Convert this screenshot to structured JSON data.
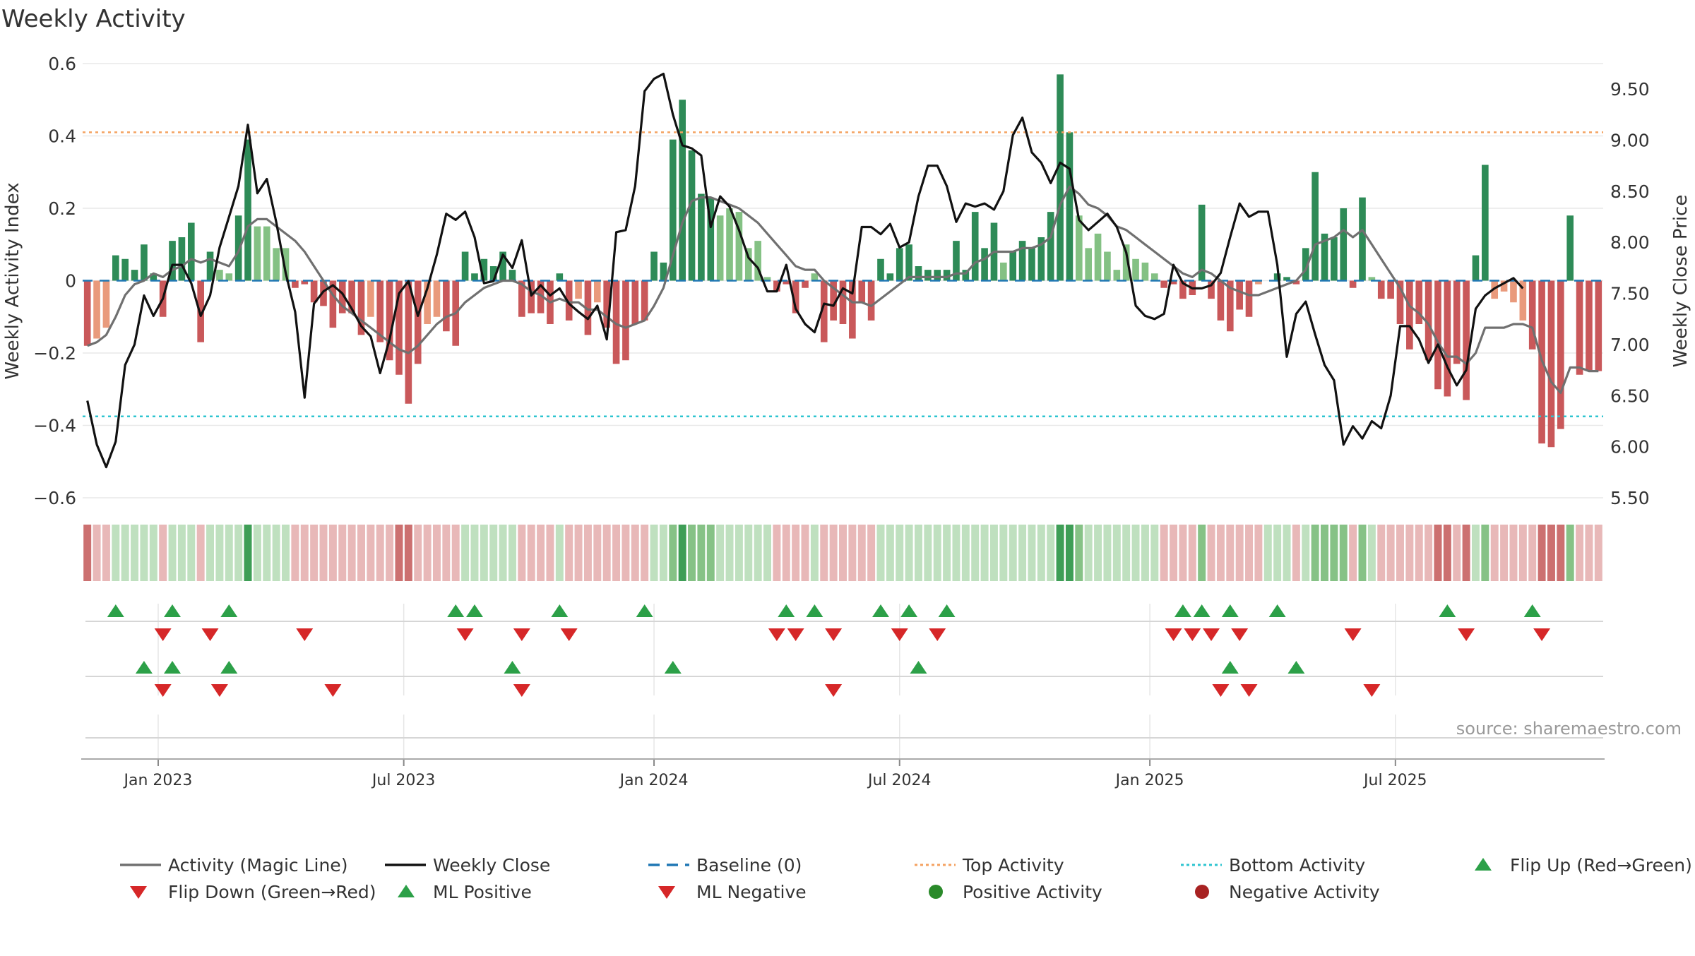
{
  "chart_data": {
    "type": "bar",
    "title": "Weekly Activity",
    "ylabel_left": "Weekly Activity Index",
    "ylabel_right": "Weekly Close Price",
    "source": "source: sharemaestro.com",
    "ylim_left": [
      -0.6,
      0.6
    ],
    "left_ticks": [
      {
        "v": 0.6,
        "label": "0.6"
      },
      {
        "v": 0.4,
        "label": "0.4"
      },
      {
        "v": 0.2,
        "label": "0.2"
      },
      {
        "v": 0,
        "label": "0"
      },
      {
        "v": -0.2,
        "label": "−0.2"
      },
      {
        "v": -0.4,
        "label": "−0.4"
      },
      {
        "v": -0.6,
        "label": "−0.6"
      }
    ],
    "right_range": [
      5.5,
      9.75
    ],
    "right_ticks": [
      {
        "v": 9.5,
        "label": "9.50"
      },
      {
        "v": 9.0,
        "label": "9.00"
      },
      {
        "v": 8.5,
        "label": "8.50"
      },
      {
        "v": 8.0,
        "label": "8.00"
      },
      {
        "v": 7.5,
        "label": "7.50"
      },
      {
        "v": 7.0,
        "label": "7.00"
      },
      {
        "v": 6.5,
        "label": "6.50"
      },
      {
        "v": 6.0,
        "label": "6.00"
      },
      {
        "v": 5.5,
        "label": "5.50"
      }
    ],
    "x_ticks": [
      {
        "week": 7.5,
        "label": "Jan 2023"
      },
      {
        "week": 33.5,
        "label": "Jul 2023"
      },
      {
        "week": 60,
        "label": "Jan 2024"
      },
      {
        "week": 86,
        "label": "Jul 2024"
      },
      {
        "week": 112.5,
        "label": "Jan 2025"
      },
      {
        "week": 138.5,
        "label": "Jul 2025"
      }
    ],
    "top_activity": 0.41,
    "bottom_activity": -0.375,
    "activity": [
      -0.18,
      -0.16,
      -0.13,
      0.07,
      0.06,
      0.03,
      0.1,
      0.02,
      -0.1,
      0.11,
      0.12,
      0.16,
      -0.17,
      0.08,
      0.03,
      0.02,
      0.18,
      0.39,
      0.15,
      0.15,
      0.09,
      0.09,
      -0.02,
      -0.01,
      -0.06,
      -0.07,
      -0.13,
      -0.09,
      -0.09,
      -0.15,
      -0.1,
      -0.17,
      -0.22,
      -0.26,
      -0.34,
      -0.23,
      -0.12,
      -0.1,
      -0.14,
      -0.18,
      0.08,
      0.02,
      0.06,
      0.04,
      0.08,
      0.03,
      -0.1,
      -0.09,
      -0.09,
      -0.12,
      0.02,
      -0.11,
      -0.05,
      -0.15,
      -0.06,
      -0.13,
      -0.23,
      -0.22,
      -0.12,
      -0.11,
      0.08,
      0.05,
      0.39,
      0.5,
      0.36,
      0.24,
      0.23,
      0.18,
      0.2,
      0.19,
      0.09,
      0.11,
      0.01,
      -0.03,
      -0.01,
      -0.09,
      -0.02,
      0.02,
      -0.17,
      -0.11,
      -0.12,
      -0.16,
      -0.06,
      -0.11,
      0.06,
      0.02,
      0.09,
      0.1,
      0.04,
      0.03,
      0.03,
      0.03,
      0.11,
      0.03,
      0.19,
      0.09,
      0.16,
      0.05,
      0.08,
      0.11,
      0.09,
      0.12,
      0.19,
      0.57,
      0.41,
      0.18,
      0.09,
      0.13,
      0.08,
      0.03,
      0.1,
      0.06,
      0.05,
      0.02,
      -0.02,
      -0.01,
      -0.05,
      -0.04,
      0.21,
      -0.05,
      -0.11,
      -0.14,
      -0.08,
      -0.1,
      -0.01,
      0.0,
      0.02,
      0.01,
      -0.01,
      0.09,
      0.3,
      0.13,
      0.12,
      0.2,
      -0.02,
      0.23,
      0.01,
      -0.05,
      -0.05,
      -0.12,
      -0.19,
      -0.12,
      -0.22,
      -0.3,
      -0.32,
      -0.23,
      -0.33,
      0.07,
      0.32,
      -0.05,
      -0.03,
      -0.06,
      -0.11,
      -0.19,
      -0.45,
      -0.46,
      -0.41,
      0.18,
      -0.26,
      -0.25,
      -0.25
    ],
    "magic_line": [
      -0.18,
      -0.17,
      -0.15,
      -0.1,
      -0.04,
      -0.01,
      0.0,
      0.02,
      0.01,
      0.03,
      0.04,
      0.06,
      0.05,
      0.06,
      0.05,
      0.04,
      0.08,
      0.15,
      0.17,
      0.17,
      0.15,
      0.13,
      0.11,
      0.08,
      0.04,
      0.0,
      -0.04,
      -0.07,
      -0.09,
      -0.11,
      -0.13,
      -0.15,
      -0.17,
      -0.19,
      -0.2,
      -0.18,
      -0.15,
      -0.12,
      -0.1,
      -0.09,
      -0.06,
      -0.04,
      -0.02,
      -0.01,
      0.0,
      0.0,
      -0.01,
      -0.03,
      -0.04,
      -0.06,
      -0.05,
      -0.06,
      -0.06,
      -0.08,
      -0.08,
      -0.1,
      -0.12,
      -0.13,
      -0.12,
      -0.11,
      -0.07,
      -0.02,
      0.07,
      0.16,
      0.22,
      0.23,
      0.23,
      0.22,
      0.21,
      0.2,
      0.18,
      0.16,
      0.13,
      0.1,
      0.07,
      0.04,
      0.03,
      0.03,
      0.0,
      -0.02,
      -0.04,
      -0.06,
      -0.06,
      -0.07,
      -0.05,
      -0.03,
      -0.01,
      0.01,
      0.01,
      0.01,
      0.01,
      0.01,
      0.02,
      0.02,
      0.05,
      0.06,
      0.08,
      0.08,
      0.08,
      0.09,
      0.09,
      0.1,
      0.12,
      0.21,
      0.26,
      0.24,
      0.21,
      0.2,
      0.18,
      0.15,
      0.14,
      0.12,
      0.1,
      0.08,
      0.06,
      0.04,
      0.02,
      0.01,
      0.03,
      0.02,
      0.0,
      -0.02,
      -0.03,
      -0.04,
      -0.04,
      -0.03,
      -0.02,
      -0.01,
      0.0,
      0.03,
      0.1,
      0.11,
      0.12,
      0.14,
      0.12,
      0.14,
      0.1,
      0.06,
      0.02,
      -0.02,
      -0.07,
      -0.09,
      -0.12,
      -0.17,
      -0.21,
      -0.21,
      -0.23,
      -0.2,
      -0.13,
      -0.13,
      -0.13,
      -0.12,
      -0.12,
      -0.13,
      -0.22,
      -0.28,
      -0.31,
      -0.24,
      -0.24,
      -0.25,
      -0.25
    ],
    "weekly_close": [
      6.45,
      6.02,
      5.8,
      6.05,
      6.8,
      7.0,
      7.48,
      7.28,
      7.45,
      7.78,
      7.78,
      7.6,
      7.28,
      7.48,
      7.95,
      8.25,
      8.55,
      9.15,
      8.48,
      8.62,
      8.2,
      7.7,
      7.32,
      6.48,
      7.4,
      7.52,
      7.58,
      7.5,
      7.35,
      7.18,
      7.08,
      6.72,
      7.05,
      7.5,
      7.62,
      7.28,
      7.55,
      7.88,
      8.28,
      8.22,
      8.3,
      8.05,
      7.6,
      7.62,
      7.88,
      7.75,
      8.02,
      7.48,
      7.58,
      7.48,
      7.55,
      7.4,
      7.32,
      7.25,
      7.38,
      7.05,
      8.1,
      8.12,
      8.55,
      9.48,
      9.6,
      9.65,
      9.25,
      8.95,
      8.92,
      8.85,
      8.15,
      8.45,
      8.35,
      8.12,
      7.85,
      7.75,
      7.52,
      7.52,
      7.78,
      7.35,
      7.2,
      7.12,
      7.4,
      7.38,
      7.55,
      7.5,
      8.15,
      8.15,
      8.08,
      8.18,
      7.95,
      8.0,
      8.45,
      8.75,
      8.75,
      8.55,
      8.2,
      8.38,
      8.35,
      8.38,
      8.32,
      8.5,
      9.05,
      9.22,
      8.88,
      8.78,
      8.58,
      8.78,
      8.72,
      8.22,
      8.12,
      8.2,
      8.28,
      8.15,
      7.9,
      7.38,
      7.28,
      7.25,
      7.3,
      7.78,
      7.6,
      7.55,
      7.55,
      7.58,
      7.7,
      8.05,
      8.38,
      8.25,
      8.3,
      8.3,
      7.78,
      6.88,
      7.3,
      7.42,
      7.1,
      6.8,
      6.65,
      6.02,
      6.2,
      6.08,
      6.25,
      6.18,
      6.5,
      7.18,
      7.18,
      7.05,
      6.82,
      7.0,
      6.78,
      6.6,
      6.75,
      7.35,
      7.48,
      7.55,
      7.6,
      7.65,
      7.55
    ],
    "heat_strip": [
      -2,
      -1,
      -1,
      1,
      1,
      1,
      1,
      1,
      -1,
      1,
      1,
      1,
      -1,
      1,
      1,
      1,
      1,
      3,
      1,
      1,
      1,
      1,
      -1,
      -1,
      -1,
      -1,
      -1,
      -1,
      -1,
      -1,
      -1,
      -1,
      -1,
      -2,
      -2,
      -1,
      -1,
      -1,
      -1,
      -1,
      1,
      1,
      1,
      1,
      1,
      1,
      -1,
      -1,
      -1,
      -1,
      1,
      -1,
      -1,
      -1,
      -1,
      -1,
      -1,
      -1,
      -1,
      -1,
      1,
      1,
      2,
      3,
      2,
      2,
      2,
      1,
      1,
      1,
      1,
      1,
      1,
      -1,
      -1,
      -1,
      -1,
      1,
      -1,
      -1,
      -1,
      -1,
      -1,
      -1,
      1,
      1,
      1,
      1,
      1,
      1,
      1,
      1,
      1,
      1,
      1,
      1,
      1,
      1,
      1,
      1,
      1,
      1,
      1,
      3,
      3,
      2,
      1,
      1,
      1,
      1,
      1,
      1,
      1,
      1,
      -1,
      -1,
      -1,
      -1,
      2,
      -1,
      -1,
      -1,
      -1,
      -1,
      -1,
      1,
      1,
      1,
      -1,
      1,
      2,
      2,
      2,
      2,
      -1,
      2,
      1,
      -1,
      -1,
      -1,
      -1,
      -1,
      -1,
      -2,
      -2,
      -1,
      -2,
      1,
      2,
      -1,
      -1,
      -1,
      -1,
      -1,
      -2,
      -2,
      -2,
      2,
      -1,
      -1,
      -1
    ],
    "signal_rows": [
      {
        "kind": "up",
        "weeks": [
          3,
          9,
          15,
          39,
          41,
          50,
          59,
          74,
          77,
          84,
          87,
          91,
          116,
          118,
          121,
          126,
          144,
          153
        ]
      },
      {
        "kind": "down",
        "weeks": [
          8,
          13,
          23,
          40,
          46,
          51,
          73,
          75,
          79,
          86,
          90,
          115,
          117,
          119,
          122,
          134,
          146,
          154
        ]
      },
      {
        "kind": "up",
        "weeks": [
          6,
          9,
          15,
          45,
          62,
          88,
          121,
          128
        ]
      },
      {
        "kind": "down",
        "weeks": [
          8,
          14,
          26,
          46,
          79,
          120,
          123,
          136
        ]
      }
    ],
    "colors": {
      "pos_strong": "#2e8b57",
      "pos_light": "#84c184",
      "neg_strong": "#c9585a",
      "neg_light": "#e99a7c",
      "magic_line": "#707070",
      "weekly_close": "#111111",
      "baseline": "#1f77b4",
      "top_activity": "#f4a261",
      "bottom_activity": "#2ec4d0",
      "marker_up": "#2ca048",
      "marker_down": "#d62728",
      "positive_dot": "#2a8a2a",
      "negative_dot": "#a82222"
    },
    "legend": [
      {
        "label": "Activity (Magic Line)",
        "symbol": "line",
        "color": "#707070"
      },
      {
        "label": "Weekly Close",
        "symbol": "line",
        "color": "#111111"
      },
      {
        "label": "Baseline (0)",
        "symbol": "dash",
        "color": "#1f77b4"
      },
      {
        "label": "Top Activity",
        "symbol": "dot-line",
        "color": "#f4a261"
      },
      {
        "label": "Bottom Activity",
        "symbol": "dot-line",
        "color": "#2ec4d0"
      },
      {
        "label": "Flip Up (Red→Green)",
        "symbol": "triangle-up",
        "color": "#2ca048"
      },
      {
        "label": "Flip Down (Green→Red)",
        "symbol": "triangle-down",
        "color": "#d62728"
      },
      {
        "label": "ML Positive",
        "symbol": "triangle-up",
        "color": "#2ca048"
      },
      {
        "label": "ML Negative",
        "symbol": "triangle-down",
        "color": "#d62728"
      },
      {
        "label": "Positive Activity",
        "symbol": "circle",
        "color": "#2a8a2a"
      },
      {
        "label": "Negative Activity",
        "symbol": "circle",
        "color": "#a82222"
      }
    ]
  }
}
